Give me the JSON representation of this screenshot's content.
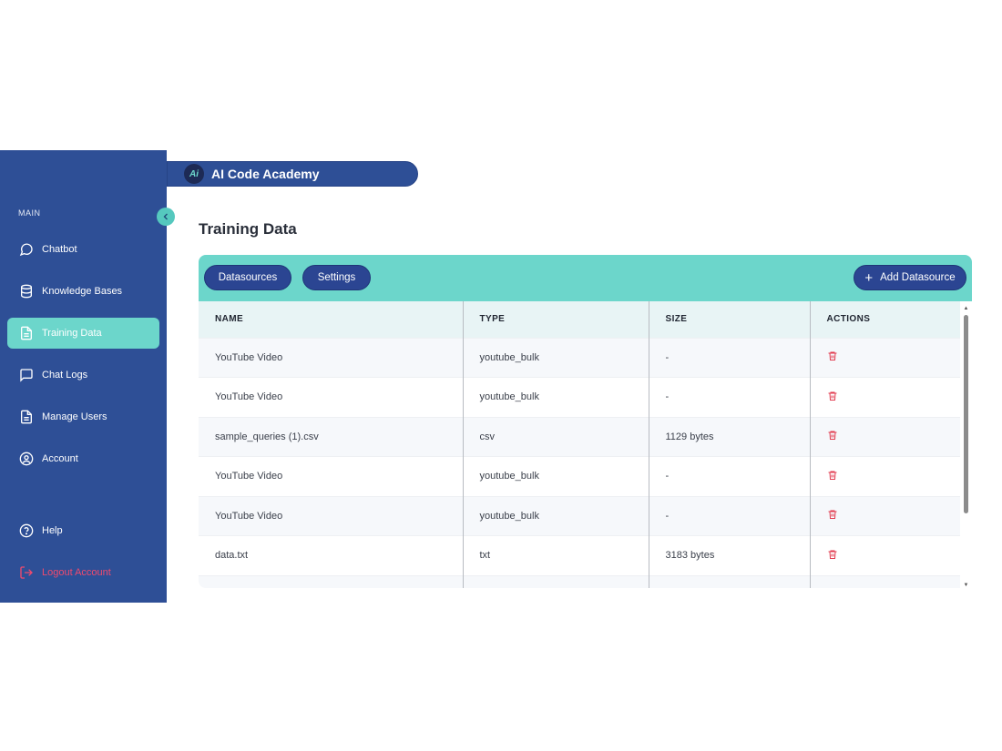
{
  "app": {
    "brand": "AI Code Academy",
    "logo_text": "Ai"
  },
  "colors": {
    "sidebar": "#2e4f96",
    "accent": "#6cd6cb",
    "button": "#2b4592",
    "danger": "#e23a4e"
  },
  "sidebar": {
    "section_label": "MAIN",
    "items": [
      {
        "label": "Chatbot",
        "icon": "chat-bubble-icon"
      },
      {
        "label": "Knowledge Bases",
        "icon": "database-icon"
      },
      {
        "label": "Training Data",
        "icon": "document-icon",
        "active": true
      },
      {
        "label": "Chat Logs",
        "icon": "message-square-icon"
      },
      {
        "label": "Manage Users",
        "icon": "document-icon"
      },
      {
        "label": "Account",
        "icon": "user-circle-icon"
      }
    ],
    "bottom": [
      {
        "label": "Help",
        "icon": "help-circle-icon"
      },
      {
        "label": "Logout Account",
        "icon": "logout-icon"
      }
    ]
  },
  "page": {
    "title": "Training Data"
  },
  "toolbar": {
    "datasources_label": "Datasources",
    "settings_label": "Settings",
    "add_label": "Add Datasource"
  },
  "table": {
    "headers": [
      "NAME",
      "TYPE",
      "SIZE",
      "ACTIONS"
    ],
    "rows": [
      {
        "name": "YouTube Video",
        "type": "youtube_bulk",
        "size": "-"
      },
      {
        "name": "YouTube Video",
        "type": "youtube_bulk",
        "size": "-"
      },
      {
        "name": "sample_queries (1).csv",
        "type": "csv",
        "size": "1129 bytes"
      },
      {
        "name": "YouTube Video",
        "type": "youtube_bulk",
        "size": "-"
      },
      {
        "name": "YouTube Video",
        "type": "youtube_bulk",
        "size": "-"
      },
      {
        "name": "data.txt",
        "type": "txt",
        "size": "3183 bytes"
      },
      {
        "name": "",
        "type": "",
        "size": ""
      }
    ]
  }
}
